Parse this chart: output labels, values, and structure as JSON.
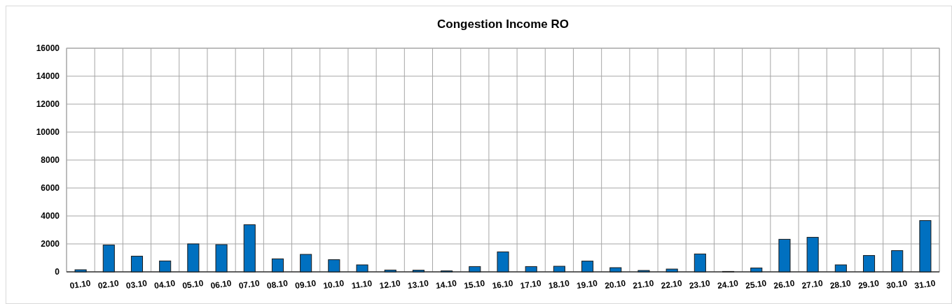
{
  "chart_data": {
    "type": "bar",
    "title": "Congestion Income RO",
    "categories": [
      "01.10",
      "02.10",
      "03.10",
      "04.10",
      "05.10",
      "06.10",
      "07.10",
      "08.10",
      "09.10",
      "10.10",
      "11.10",
      "12.10",
      "13.10",
      "14.10",
      "15.10",
      "16.10",
      "17.10",
      "18.10",
      "19.10",
      "20.10",
      "21.10",
      "22.10",
      "23.10",
      "24.10",
      "25.10",
      "26.10",
      "27.10",
      "28.10",
      "29.10",
      "30.10",
      "31.10"
    ],
    "values": [
      150,
      1920,
      1120,
      780,
      2000,
      1950,
      3370,
      930,
      1250,
      870,
      500,
      130,
      120,
      70,
      380,
      1430,
      380,
      400,
      770,
      300,
      100,
      200,
      1280,
      30,
      280,
      2330,
      2470,
      500,
      1170,
      1520,
      3670
    ],
    "color": "#0070c0",
    "ylim": [
      0,
      16000
    ],
    "yticks": [
      0,
      2000,
      4000,
      6000,
      8000,
      10000,
      12000,
      14000,
      16000
    ],
    "grid": true
  }
}
